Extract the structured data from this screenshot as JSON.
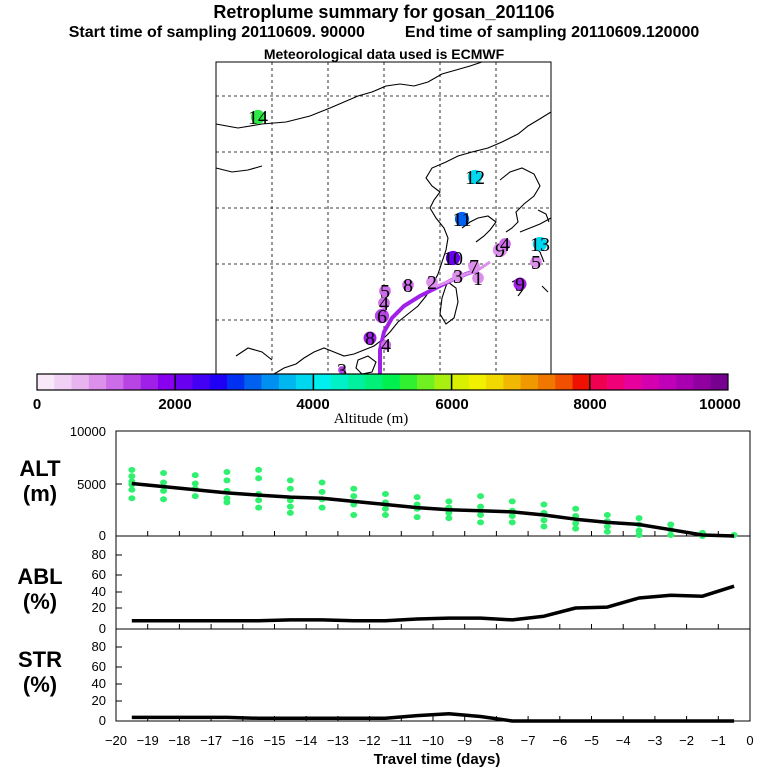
{
  "header": {
    "title": "Retroplume summary for gosan_201106",
    "start_label": "Start time of sampling 20110609. 90000",
    "end_label": "End time of sampling 20110609.120000",
    "met_label": "Meteorological data used is ECMWF"
  },
  "colorbar": {
    "title": "Altitude (m)",
    "ticks": [
      "0",
      "2000",
      "4000",
      "6000",
      "8000",
      "10000"
    ],
    "colors": [
      "#f8e8f8",
      "#f0d0f4",
      "#e8b4f0",
      "#dc90ec",
      "#cc6ce8",
      "#b844e4",
      "#a020e8",
      "#8800f0",
      "#6a00f0",
      "#4400f4",
      "#2000f4",
      "#0030f0",
      "#0060f0",
      "#0090f0",
      "#00b8f0",
      "#00d8f0",
      "#00f0f0",
      "#00f0c8",
      "#00f0a0",
      "#00f078",
      "#00f050",
      "#30f030",
      "#70f020",
      "#a8f010",
      "#d8f000",
      "#f0f000",
      "#f0d800",
      "#f0b800",
      "#f09800",
      "#f07800",
      "#f05000",
      "#f01000",
      "#f00050",
      "#f00078",
      "#e8009c",
      "#d400b0",
      "#c000b8",
      "#a800b0",
      "#9000a0",
      "#780090"
    ]
  },
  "map": {
    "labels": [
      {
        "text": "14",
        "color": "#30e848"
      },
      {
        "text": "12",
        "color": "#00d8f0"
      },
      {
        "text": "11",
        "color": "#0060f0"
      },
      {
        "text": "13",
        "color": "#00d8f0"
      },
      {
        "text": "10",
        "color": "#6a00f0"
      },
      {
        "text": "9",
        "color": "#dc90ec"
      },
      {
        "text": "5",
        "color": "#cc6ce8"
      },
      {
        "text": "8",
        "color": "#cc6ce8"
      },
      {
        "text": "7",
        "color": "#dc90ec"
      },
      {
        "text": "2",
        "color": "#dc90ec"
      },
      {
        "text": "3",
        "color": "#dc90ec"
      },
      {
        "text": "4",
        "color": "#cc6ce8"
      },
      {
        "text": "6",
        "color": "#b844e4"
      },
      {
        "text": "8",
        "color": "#a020e8"
      },
      {
        "text": "4",
        "color": "#cc6ce8"
      },
      {
        "text": "1",
        "color": "#dc90ec"
      },
      {
        "text": "4",
        "color": "#cc6ce8"
      },
      {
        "text": "5",
        "color": "#dc90ec"
      },
      {
        "text": "9",
        "color": "#a020e8"
      },
      {
        "text": "3",
        "color": "#b844e4"
      }
    ]
  },
  "panels": {
    "alt": {
      "label_top": "ALT",
      "label_bot": "(m)",
      "ticks": [
        "0",
        "5000",
        "10000"
      ]
    },
    "abl": {
      "label_top": "ABL",
      "label_bot": "(%)",
      "ticks": [
        "0",
        "20",
        "40",
        "60",
        "80"
      ]
    },
    "str": {
      "label_top": "STR",
      "label_bot": "(%)",
      "ticks": [
        "0",
        "20",
        "40",
        "60",
        "80"
      ]
    }
  },
  "chart_data": {
    "type": "line",
    "xlabel": "Travel time (days)",
    "xlim": [
      -20,
      0
    ],
    "x_tick_labels": [
      "−20",
      "−19",
      "−18",
      "−17",
      "−16",
      "−15",
      "−14",
      "−13",
      "−12",
      "−11",
      "−10",
      "−9",
      "−8",
      "−7",
      "−6",
      "−5",
      "−4",
      "−3",
      "−2",
      "−1",
      "0"
    ],
    "series": [
      {
        "name": "ALT (m)",
        "ylim": [
          0,
          10000
        ],
        "x": [
          -19.5,
          -18.5,
          -17.5,
          -16.5,
          -15.5,
          -14.5,
          -13.5,
          -12.5,
          -11.5,
          -10.5,
          -9.5,
          -8.5,
          -7.5,
          -6.5,
          -5.5,
          -4.5,
          -3.5,
          -2.5,
          -1.5,
          -0.5
        ],
        "values": [
          5000,
          4700,
          4400,
          4100,
          3900,
          3700,
          3600,
          3300,
          3000,
          2700,
          2500,
          2400,
          2300,
          2000,
          1600,
          1300,
          1100,
          600,
          100,
          0
        ]
      },
      {
        "name": "ABL (%)",
        "ylim": [
          0,
          90
        ],
        "x": [
          -19.5,
          -18.5,
          -17.5,
          -16.5,
          -15.5,
          -14.5,
          -13.5,
          -12.5,
          -11.5,
          -10.5,
          -9.5,
          -8.5,
          -7.5,
          -6.5,
          -5.5,
          -4.5,
          -3.5,
          -2.5,
          -1.5,
          -0.5
        ],
        "values": [
          9,
          9,
          9,
          9,
          9,
          10,
          10,
          9,
          9,
          11,
          12,
          12,
          10,
          14,
          23,
          24,
          34,
          37,
          36,
          47
        ]
      },
      {
        "name": "STR (%)",
        "ylim": [
          0,
          90
        ],
        "x": [
          -19.5,
          -18.5,
          -17.5,
          -16.5,
          -15.5,
          -14.5,
          -13.5,
          -12.5,
          -11.5,
          -10.5,
          -9.5,
          -8.5,
          -7.5,
          -6.5,
          -5.5,
          -4.5,
          -3.5,
          -2.5,
          -1.5,
          -0.5
        ],
        "values": [
          4,
          4,
          4,
          4,
          3,
          3,
          3,
          3,
          3,
          6,
          8,
          5,
          0,
          0,
          0,
          0,
          0,
          0,
          0,
          0
        ]
      }
    ],
    "alt_spread_points": [
      [
        -19.5,
        6300
      ],
      [
        -19.5,
        5700
      ],
      [
        -19.5,
        5200
      ],
      [
        -19.5,
        4900
      ],
      [
        -19.5,
        4400
      ],
      [
        -19.5,
        3600
      ],
      [
        -18.5,
        6000
      ],
      [
        -18.5,
        5100
      ],
      [
        -18.5,
        4300
      ],
      [
        -18.5,
        3500
      ],
      [
        -17.5,
        5800
      ],
      [
        -17.5,
        5000
      ],
      [
        -17.5,
        4500
      ],
      [
        -17.5,
        3800
      ],
      [
        -16.5,
        6100
      ],
      [
        -16.5,
        5300
      ],
      [
        -16.5,
        4300
      ],
      [
        -16.5,
        3600
      ],
      [
        -16.5,
        3200
      ],
      [
        -15.5,
        6300
      ],
      [
        -15.5,
        5500
      ],
      [
        -15.5,
        4000
      ],
      [
        -15.5,
        3400
      ],
      [
        -15.5,
        2700
      ],
      [
        -14.5,
        5300
      ],
      [
        -14.5,
        4500
      ],
      [
        -14.5,
        3400
      ],
      [
        -14.5,
        2800
      ],
      [
        -14.5,
        2200
      ],
      [
        -13.5,
        5100
      ],
      [
        -13.5,
        4200
      ],
      [
        -13.5,
        3500
      ],
      [
        -13.5,
        2700
      ],
      [
        -12.5,
        4500
      ],
      [
        -12.5,
        3800
      ],
      [
        -12.5,
        3000
      ],
      [
        -12.5,
        2000
      ],
      [
        -11.5,
        4000
      ],
      [
        -11.5,
        3200
      ],
      [
        -11.5,
        2600
      ],
      [
        -11.5,
        2000
      ],
      [
        -10.5,
        3700
      ],
      [
        -10.5,
        3000
      ],
      [
        -10.5,
        2600
      ],
      [
        -10.5,
        1800
      ],
      [
        -9.5,
        3300
      ],
      [
        -9.5,
        2700
      ],
      [
        -9.5,
        2200
      ],
      [
        -9.5,
        1700
      ],
      [
        -8.5,
        3800
      ],
      [
        -8.5,
        2800
      ],
      [
        -8.5,
        2000
      ],
      [
        -8.5,
        1300
      ],
      [
        -7.5,
        3300
      ],
      [
        -7.5,
        2400
      ],
      [
        -7.5,
        1900
      ],
      [
        -7.5,
        1300
      ],
      [
        -6.5,
        3000
      ],
      [
        -6.5,
        2200
      ],
      [
        -6.5,
        1500
      ],
      [
        -6.5,
        900
      ],
      [
        -5.5,
        2600
      ],
      [
        -5.5,
        1900
      ],
      [
        -5.5,
        1200
      ],
      [
        -5.5,
        700
      ],
      [
        -4.5,
        2000
      ],
      [
        -4.5,
        1400
      ],
      [
        -4.5,
        900
      ],
      [
        -4.5,
        400
      ],
      [
        -3.5,
        1700
      ],
      [
        -3.5,
        1100
      ],
      [
        -3.5,
        500
      ],
      [
        -3.5,
        100
      ],
      [
        -2.5,
        1100
      ],
      [
        -2.5,
        600
      ],
      [
        -2.5,
        100
      ],
      [
        -1.5,
        300
      ],
      [
        -1.5,
        0
      ],
      [
        -0.5,
        100
      ]
    ]
  }
}
